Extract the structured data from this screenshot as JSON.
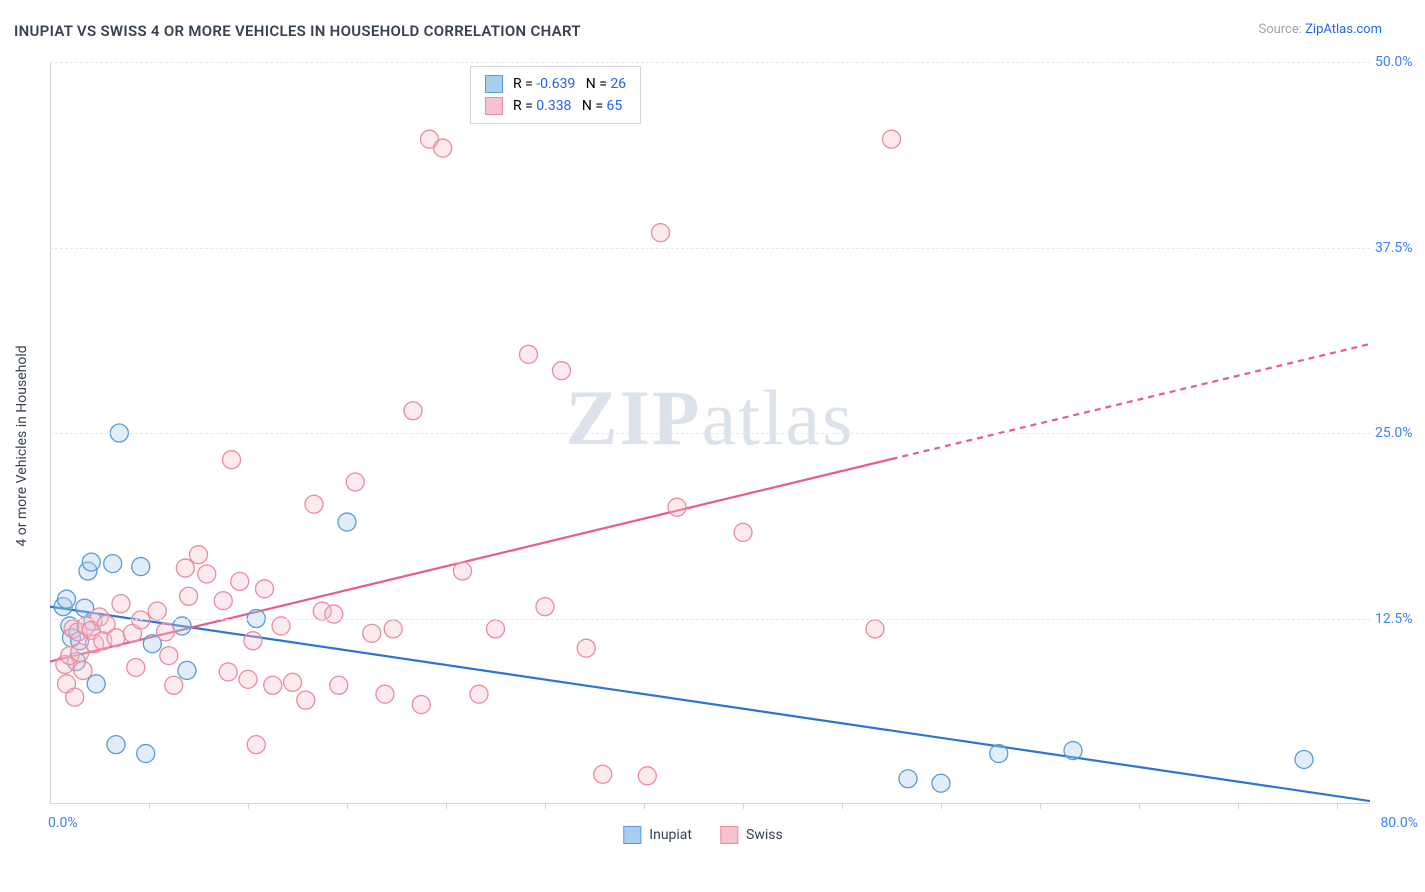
{
  "title": "INUPIAT VS SWISS 4 OR MORE VEHICLES IN HOUSEHOLD CORRELATION CHART",
  "source_label": "Source: ",
  "source_link": "ZipAtlas.com",
  "watermark_a": "ZIP",
  "watermark_b": "atlas",
  "chart": {
    "type": "scatter",
    "xlim": [
      0,
      80
    ],
    "ylim": [
      0,
      50
    ],
    "x_ticks": [
      0,
      80
    ],
    "x_tick_labels": [
      "0.0%",
      "80.0%"
    ],
    "x_minor_ticks": [
      6,
      12,
      18,
      24,
      30,
      36,
      42,
      48,
      54,
      60,
      66,
      72,
      78
    ],
    "y_ticks": [
      12.5,
      25.0,
      37.5,
      50.0
    ],
    "y_tick_labels": [
      "12.5%",
      "25.0%",
      "37.5%",
      "50.0%"
    ],
    "y_axis_title": "4 or more Vehicles in Household",
    "background_color": "#ffffff",
    "grid_color": "#e5e7eb",
    "axis_color": "#d1d5db",
    "marker_radius": 9,
    "marker_stroke_width": 1.3,
    "marker_fill_opacity": 0.35,
    "trend_line_width": 2.2,
    "series": [
      {
        "name": "Inupiat",
        "color_stroke": "#5a9bd5",
        "color_fill": "#a9cdef",
        "trend_color": "#2f74d0",
        "r_value": "-0.639",
        "n_value": "26",
        "trend": {
          "x1": 0,
          "y1": 13.3,
          "x2": 80,
          "y2": 0.2,
          "dashed_from_x": null
        },
        "points": [
          [
            0.8,
            13.3
          ],
          [
            1.0,
            13.8
          ],
          [
            1.2,
            12.0
          ],
          [
            1.3,
            11.2
          ],
          [
            1.6,
            9.6
          ],
          [
            1.8,
            11.0
          ],
          [
            2.1,
            13.2
          ],
          [
            2.3,
            15.7
          ],
          [
            2.5,
            16.3
          ],
          [
            2.6,
            12.3
          ],
          [
            2.8,
            8.1
          ],
          [
            3.8,
            16.2
          ],
          [
            4.0,
            4.0
          ],
          [
            4.2,
            25.0
          ],
          [
            5.5,
            16.0
          ],
          [
            5.8,
            3.4
          ],
          [
            6.2,
            10.8
          ],
          [
            8.0,
            12.0
          ],
          [
            8.3,
            9.0
          ],
          [
            12.5,
            12.5
          ],
          [
            18.0,
            19.0
          ],
          [
            52.0,
            1.7
          ],
          [
            54.0,
            1.4
          ],
          [
            57.5,
            3.4
          ],
          [
            62.0,
            3.6
          ],
          [
            76.0,
            3.0
          ]
        ]
      },
      {
        "name": "Swiss",
        "color_stroke": "#e88ca0",
        "color_fill": "#f6c2cf",
        "trend_color": "#e75d87",
        "r_value": "0.338",
        "n_value": "65",
        "trend": {
          "x1": 0,
          "y1": 9.6,
          "x2": 80,
          "y2": 31.0,
          "dashed_from_x": 51
        },
        "points": [
          [
            0.9,
            9.4
          ],
          [
            1.0,
            8.1
          ],
          [
            1.2,
            10.0
          ],
          [
            1.4,
            11.8
          ],
          [
            1.5,
            7.2
          ],
          [
            1.7,
            11.6
          ],
          [
            1.8,
            10.2
          ],
          [
            2.0,
            9.0
          ],
          [
            2.2,
            12.0
          ],
          [
            2.5,
            11.7
          ],
          [
            2.7,
            10.8
          ],
          [
            3.0,
            12.6
          ],
          [
            3.2,
            11.0
          ],
          [
            3.4,
            12.1
          ],
          [
            4.0,
            11.2
          ],
          [
            4.3,
            13.5
          ],
          [
            5.0,
            11.5
          ],
          [
            5.2,
            9.2
          ],
          [
            5.5,
            12.4
          ],
          [
            6.5,
            13.0
          ],
          [
            7.0,
            11.6
          ],
          [
            7.2,
            10.0
          ],
          [
            7.5,
            8.0
          ],
          [
            8.2,
            15.9
          ],
          [
            8.4,
            14.0
          ],
          [
            9.0,
            16.8
          ],
          [
            9.5,
            15.5
          ],
          [
            10.5,
            13.7
          ],
          [
            10.8,
            8.9
          ],
          [
            11.0,
            23.2
          ],
          [
            11.5,
            15.0
          ],
          [
            12.0,
            8.4
          ],
          [
            12.3,
            11.0
          ],
          [
            12.5,
            4.0
          ],
          [
            13.0,
            14.5
          ],
          [
            13.5,
            8.0
          ],
          [
            14.0,
            12.0
          ],
          [
            14.7,
            8.2
          ],
          [
            15.5,
            7.0
          ],
          [
            16.0,
            20.2
          ],
          [
            16.5,
            13.0
          ],
          [
            17.2,
            12.8
          ],
          [
            17.5,
            8.0
          ],
          [
            18.5,
            21.7
          ],
          [
            19.5,
            11.5
          ],
          [
            20.3,
            7.4
          ],
          [
            20.8,
            11.8
          ],
          [
            22.0,
            26.5
          ],
          [
            22.5,
            6.7
          ],
          [
            23.0,
            44.8
          ],
          [
            23.8,
            44.2
          ],
          [
            25.0,
            15.7
          ],
          [
            26.0,
            7.4
          ],
          [
            27.0,
            11.8
          ],
          [
            29.0,
            30.3
          ],
          [
            30.0,
            13.3
          ],
          [
            31.0,
            29.2
          ],
          [
            32.5,
            10.5
          ],
          [
            33.5,
            2.0
          ],
          [
            36.2,
            1.9
          ],
          [
            37.0,
            38.5
          ],
          [
            38.0,
            20.0
          ],
          [
            42.0,
            18.3
          ],
          [
            50.0,
            11.8
          ],
          [
            51.0,
            44.8
          ]
        ]
      }
    ]
  },
  "legend_labels": {
    "r": "R =",
    "n": "N ="
  }
}
